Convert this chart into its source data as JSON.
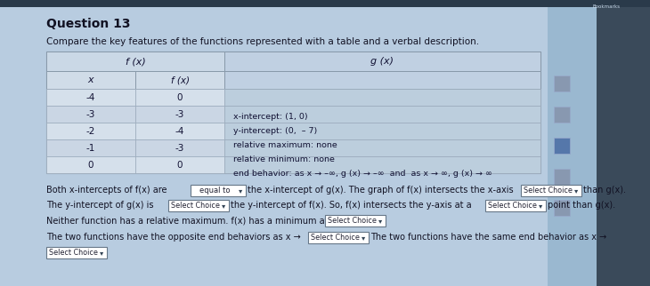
{
  "title": "Question 13",
  "subtitle": "Compare the key features of the functions represented with a table and a verbal description.",
  "table_header_fx": "f (x)",
  "table_header_gx": "g (x)",
  "col_x_label": "x",
  "col_fx_label": "f (x)",
  "table_data": [
    [
      "-4",
      "0"
    ],
    [
      "-3",
      "-3"
    ],
    [
      "-2",
      "-4"
    ],
    [
      "-1",
      "-3"
    ],
    [
      "0",
      "0"
    ]
  ],
  "gx_info": [
    "x-intercept: (1, 0)",
    "y-intercept: (0,  – 7)",
    "relative maximum: none",
    "relative minimum: none",
    "end behavior: as x → –∞, g (x) → –∞  and  as x → ∞, g (x) → ∞"
  ],
  "main_bg": "#b8cfe0",
  "sidebar_bg": "#8faecc",
  "right_edge": "#2a3a50",
  "table_outer_bg": "#c8d8e8",
  "table_header_bg": "#c0d0e0",
  "table_sub_bg": "#d0dde8",
  "table_data_bg": "#d8e4ee",
  "table_data_bg2": "#cdd9e6",
  "table_inner_bg": "#d8e2ec",
  "gx_cell_bg": "#c8d4e0",
  "box_bg": "#ffffff",
  "box_border": "#666688",
  "text_dark": "#1a1a2a",
  "italic_color": "#222244"
}
